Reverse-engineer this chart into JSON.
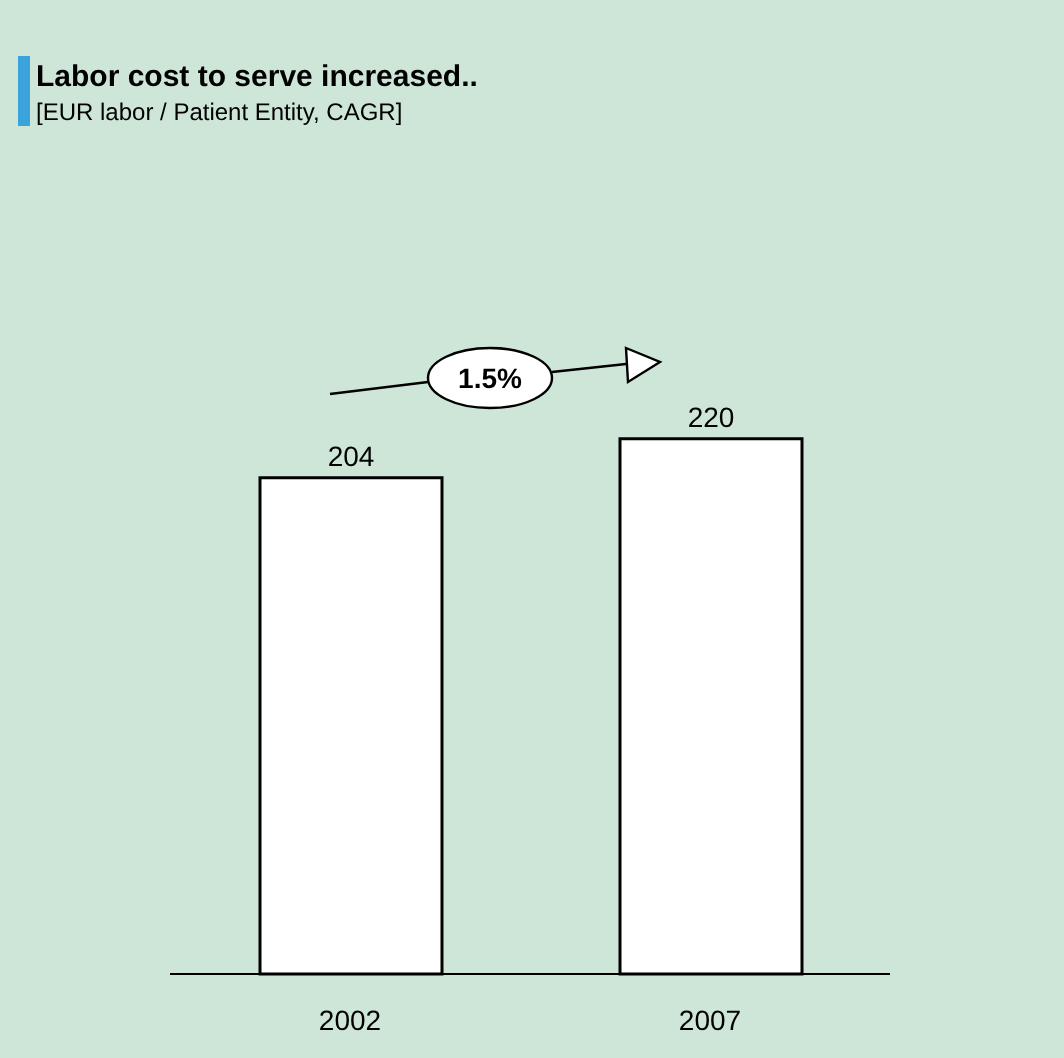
{
  "chart_data": {
    "type": "bar",
    "title": "Labor cost to serve increased..",
    "subtitle": "[EUR labor / Patient Entity, CAGR]",
    "categories": [
      "2002",
      "2007"
    ],
    "values": [
      204,
      220
    ],
    "color": "#ffffff",
    "data_labels": true,
    "annotations": [
      "1.5%"
    ]
  }
}
